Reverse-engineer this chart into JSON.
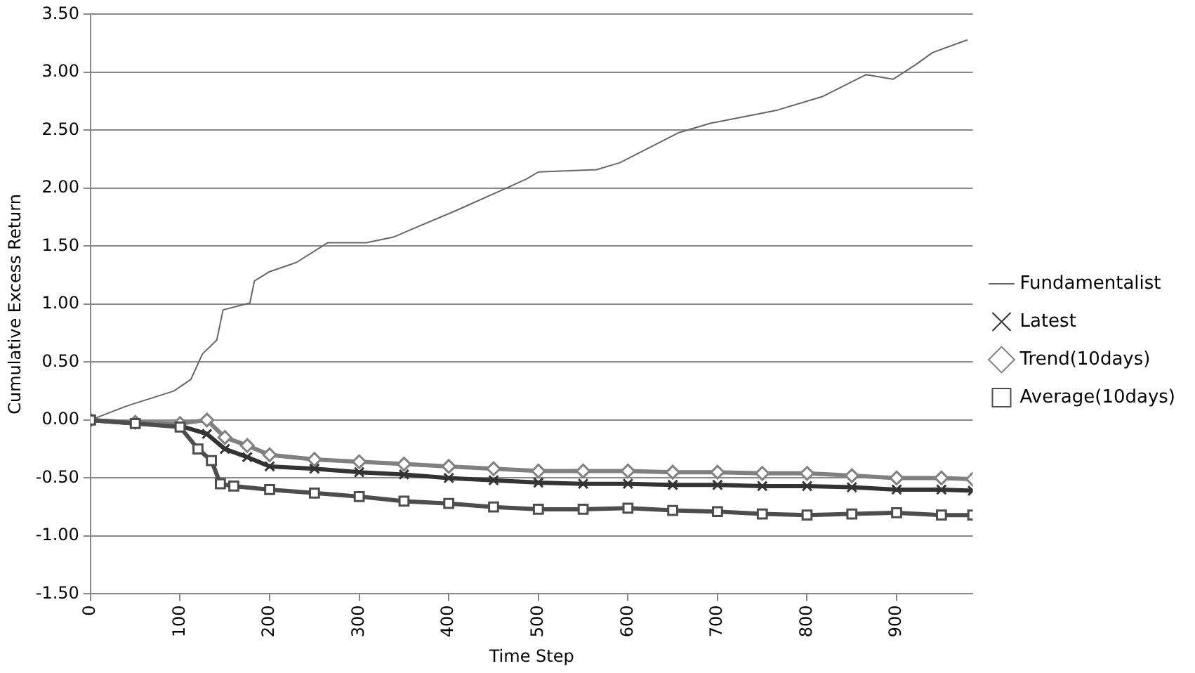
{
  "chart_data": {
    "type": "line",
    "xlabel": "Time Step",
    "ylabel": "Cumulative Excess Return",
    "xlim": [
      0,
      985
    ],
    "xticks": [
      0,
      100,
      200,
      300,
      400,
      500,
      600,
      700,
      800,
      900
    ],
    "ylim": [
      -1.5,
      3.5
    ],
    "yticks": [
      {
        "value": -1.5,
        "label": "-1.50"
      },
      {
        "value": -1,
        "label": "-1.00"
      },
      {
        "value": -0.5,
        "label": "-0.50"
      },
      {
        "value": 0,
        "label": "0.00"
      },
      {
        "value": 0.5,
        "label": "0.50"
      },
      {
        "value": 1,
        "label": "1.00"
      },
      {
        "value": 1.5,
        "label": "1.50"
      },
      {
        "value": 2,
        "label": "2.00"
      },
      {
        "value": 2.5,
        "label": "2.50"
      },
      {
        "value": 3,
        "label": "3.00"
      },
      {
        "value": 3.5,
        "label": "3.50"
      }
    ],
    "grid": "y",
    "legend": "right",
    "series": [
      {
        "name": "Fundamentalist",
        "color": "#666666",
        "marker": "none",
        "x": [
          0,
          40,
          93,
          112,
          125,
          141,
          148,
          178,
          183,
          200,
          230,
          265,
          308,
          339,
          360,
          409,
          461,
          487,
          500,
          565,
          591,
          657,
          692,
          765,
          817,
          866,
          896,
          922,
          940,
          979
        ],
        "values": [
          0,
          0.12,
          0.25,
          0.35,
          0.57,
          0.69,
          0.95,
          1.01,
          1.2,
          1.28,
          1.36,
          1.53,
          1.53,
          1.58,
          1.65,
          1.81,
          1.99,
          2.08,
          2.14,
          2.16,
          2.22,
          2.48,
          2.56,
          2.67,
          2.79,
          2.98,
          2.94,
          3.07,
          3.17,
          3.28
        ]
      },
      {
        "name": "Latest",
        "color": "#333333",
        "marker": "cross",
        "x": [
          0,
          50,
          100,
          130,
          150,
          175,
          200,
          250,
          300,
          350,
          400,
          450,
          500,
          550,
          600,
          650,
          700,
          750,
          800,
          850,
          900,
          950,
          985
        ],
        "values": [
          0,
          -0.03,
          -0.05,
          -0.12,
          -0.25,
          -0.32,
          -0.4,
          -0.42,
          -0.45,
          -0.47,
          -0.5,
          -0.52,
          -0.54,
          -0.55,
          -0.55,
          -0.56,
          -0.56,
          -0.57,
          -0.57,
          -0.58,
          -0.6,
          -0.6,
          -0.61
        ]
      },
      {
        "name": "Trend(10days)",
        "color": "#808080",
        "marker": "diamond",
        "x": [
          0,
          50,
          100,
          130,
          150,
          175,
          200,
          250,
          300,
          350,
          400,
          450,
          500,
          550,
          600,
          650,
          700,
          750,
          800,
          850,
          900,
          950,
          985
        ],
        "values": [
          0,
          -0.02,
          -0.03,
          0,
          -0.15,
          -0.22,
          -0.3,
          -0.34,
          -0.36,
          -0.38,
          -0.4,
          -0.42,
          -0.44,
          -0.44,
          -0.44,
          -0.45,
          -0.45,
          -0.46,
          -0.46,
          -0.48,
          -0.5,
          -0.5,
          -0.51
        ]
      },
      {
        "name": "Average(10days)",
        "color": "#4d4d4d",
        "marker": "square",
        "x": [
          0,
          50,
          100,
          120,
          135,
          145,
          160,
          200,
          250,
          300,
          350,
          400,
          450,
          500,
          550,
          600,
          650,
          700,
          750,
          800,
          850,
          900,
          950,
          985
        ],
        "values": [
          0,
          -0.03,
          -0.06,
          -0.25,
          -0.35,
          -0.55,
          -0.57,
          -0.6,
          -0.63,
          -0.66,
          -0.7,
          -0.72,
          -0.75,
          -0.77,
          -0.77,
          -0.76,
          -0.78,
          -0.79,
          -0.81,
          -0.82,
          -0.81,
          -0.8,
          -0.82,
          -0.82
        ]
      }
    ]
  }
}
